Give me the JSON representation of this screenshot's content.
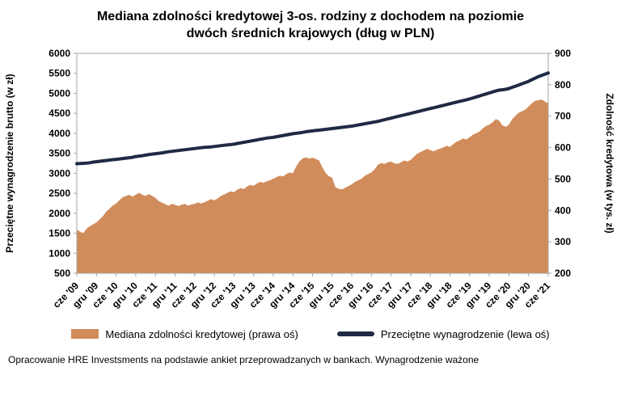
{
  "title": {
    "line1": "Mediana zdolności kredytowej 3-os. rodziny z dochodem na poziomie",
    "line2": "dwóch średnich krajowych (dług w PLN)"
  },
  "footer": "Opracowanie HRE Investsments na podstawie ankiet przeprowadzanych w bankach. Wynagrodzenie ważone",
  "chart_data": {
    "type": "area",
    "subtype": "area + line, dual axis, monthly data Jun 2009 - Jun 2021",
    "grid": false,
    "legend_position": "bottom",
    "x_labels": [
      "cze '09",
      "gru '09",
      "cze '10",
      "gru '10",
      "cze '11",
      "gru '11",
      "cze '12",
      "gru '12",
      "cze '13",
      "gru '13",
      "cze '14",
      "gru '14",
      "cze '15",
      "gru '15",
      "cze '16",
      "gru '16",
      "cze '17",
      "gru '17",
      "cze '18",
      "gru '18",
      "cze '19",
      "gru '19",
      "cze '20",
      "gru '20",
      "cze '21"
    ],
    "label_every": 6,
    "left_axis": {
      "label": "Przeciętne wynagrodzenie brutto (w zł)",
      "min": 500,
      "max": 6000,
      "step": 500
    },
    "right_axis": {
      "label": "Zdolność kredytowa (w tys. zł)",
      "min": 200,
      "max": 900,
      "step": 100
    },
    "series": [
      {
        "name": "Mediana zdolności kredytowej (prawa oś)",
        "type": "area",
        "axis": "right",
        "color": "#D18C5B",
        "values": [
          340,
          332,
          328,
          342,
          350,
          356,
          362,
          372,
          382,
          396,
          406,
          416,
          422,
          432,
          442,
          446,
          450,
          444,
          450,
          456,
          450,
          446,
          452,
          446,
          440,
          430,
          425,
          420,
          415,
          421,
          418,
          414,
          418,
          421,
          415,
          419,
          421,
          426,
          422,
          426,
          431,
          436,
          432,
          438,
          446,
          451,
          456,
          461,
          458,
          466,
          471,
          468,
          476,
          481,
          478,
          486,
          491,
          488,
          493,
          496,
          501,
          506,
          511,
          508,
          516,
          521,
          518,
          540,
          556,
          566,
          569,
          565,
          568,
          564,
          559,
          538,
          519,
          509,
          504,
          474,
          469,
          467,
          472,
          478,
          483,
          491,
          496,
          501,
          511,
          516,
          521,
          531,
          546,
          551,
          548,
          553,
          556,
          550,
          548,
          553,
          559,
          556,
          561,
          571,
          581,
          586,
          591,
          596,
          592,
          588,
          593,
          597,
          601,
          606,
          602,
          611,
          619,
          623,
          629,
          626,
          633,
          641,
          646,
          651,
          661,
          669,
          673,
          681,
          691,
          686,
          671,
          666,
          673,
          691,
          701,
          711,
          716,
          721,
          731,
          741,
          749,
          751,
          753,
          746,
          741
        ]
      },
      {
        "name": "Przeciętne wynagrodzenie (lewa oś)",
        "type": "line",
        "axis": "left",
        "color": "#1F2A44",
        "values": [
          3240,
          3245,
          3250,
          3255,
          3265,
          3280,
          3290,
          3300,
          3310,
          3320,
          3330,
          3340,
          3350,
          3360,
          3370,
          3380,
          3390,
          3400,
          3420,
          3430,
          3440,
          3455,
          3470,
          3480,
          3490,
          3500,
          3510,
          3525,
          3540,
          3550,
          3560,
          3570,
          3580,
          3590,
          3600,
          3610,
          3620,
          3630,
          3640,
          3650,
          3655,
          3660,
          3670,
          3680,
          3690,
          3700,
          3710,
          3720,
          3730,
          3745,
          3760,
          3775,
          3790,
          3805,
          3820,
          3835,
          3850,
          3865,
          3880,
          3890,
          3900,
          3915,
          3930,
          3945,
          3960,
          3975,
          3990,
          4000,
          4010,
          4025,
          4040,
          4050,
          4060,
          4070,
          4080,
          4090,
          4100,
          4110,
          4120,
          4130,
          4140,
          4150,
          4160,
          4170,
          4180,
          4195,
          4210,
          4225,
          4240,
          4255,
          4270,
          4285,
          4300,
          4320,
          4340,
          4360,
          4380,
          4400,
          4420,
          4440,
          4460,
          4480,
          4500,
          4520,
          4540,
          4560,
          4580,
          4600,
          4620,
          4640,
          4660,
          4680,
          4700,
          4720,
          4740,
          4760,
          4780,
          4800,
          4820,
          4840,
          4860,
          4885,
          4910,
          4935,
          4960,
          4985,
          5010,
          5035,
          5060,
          5080,
          5090,
          5100,
          5120,
          5150,
          5180,
          5210,
          5240,
          5270,
          5300,
          5340,
          5380,
          5420,
          5450,
          5480,
          5510
        ]
      }
    ]
  }
}
